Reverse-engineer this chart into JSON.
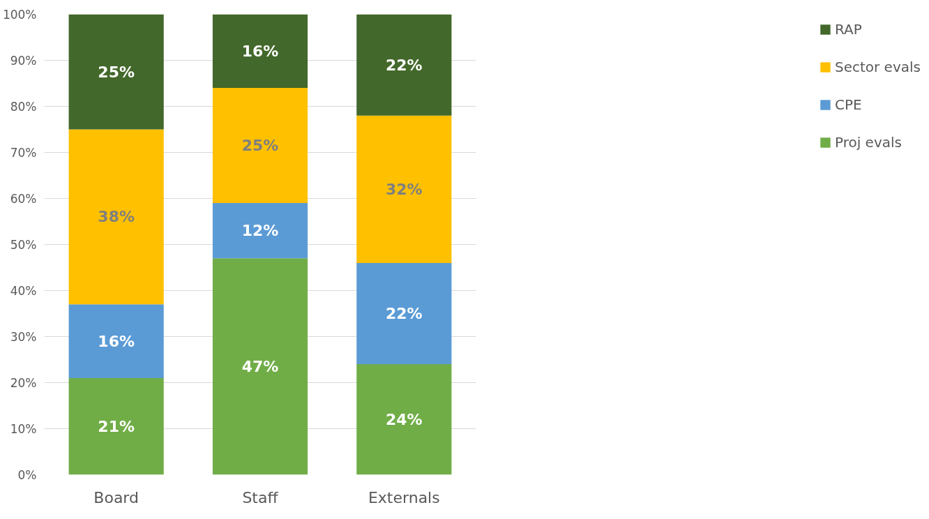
{
  "chart_data": {
    "type": "bar",
    "stacked": true,
    "categories": [
      "Board",
      "Staff",
      "Externals"
    ],
    "series": [
      {
        "name": "Proj evals",
        "color": "#70ad47",
        "values": [
          21,
          47,
          24
        ],
        "value_labels": [
          "21%",
          "47%",
          "24%"
        ]
      },
      {
        "name": "CPE",
        "color": "#5b9bd5",
        "values": [
          16,
          12,
          22
        ],
        "value_labels": [
          "16%",
          "12%",
          "22%"
        ]
      },
      {
        "name": "Sector evals",
        "color": "#ffc000",
        "values": [
          38,
          25,
          32
        ],
        "value_labels": [
          "38%",
          "25%",
          "32%"
        ]
      },
      {
        "name": "RAP",
        "color": "#43682b",
        "values": [
          25,
          16,
          22
        ],
        "value_labels": [
          "25%",
          "16%",
          "22%"
        ]
      }
    ],
    "ylim": [
      0,
      100
    ],
    "yticks": [
      {
        "value": 0,
        "label": "0%"
      },
      {
        "value": 10,
        "label": "10%"
      },
      {
        "value": 20,
        "label": "20%"
      },
      {
        "value": 30,
        "label": "30%"
      },
      {
        "value": 40,
        "label": "40%"
      },
      {
        "value": 50,
        "label": "50%"
      },
      {
        "value": 60,
        "label": "60%"
      },
      {
        "value": 70,
        "label": "70%"
      },
      {
        "value": 80,
        "label": "80%"
      },
      {
        "value": 90,
        "label": "90%"
      },
      {
        "value": 100,
        "label": "100%"
      }
    ],
    "grid": "y",
    "legend": "right"
  }
}
